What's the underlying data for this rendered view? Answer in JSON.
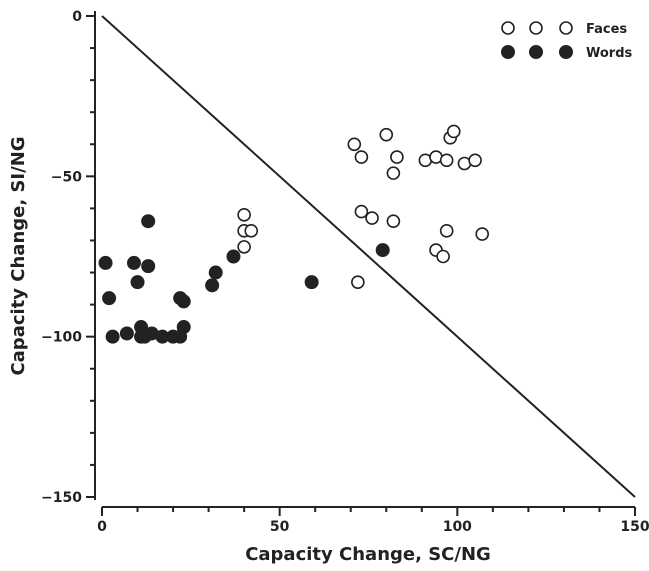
{
  "chart_data": {
    "type": "scatter",
    "xlabel": "Capacity Change, SC/NG",
    "ylabel": "Capacity Change, SI/NG",
    "xlim": [
      0,
      150
    ],
    "ylim": [
      -150,
      0
    ],
    "x_ticks": [
      0,
      50,
      100,
      150
    ],
    "y_ticks": [
      0,
      -50,
      -100,
      -150
    ],
    "minor_tick_step": 10,
    "grid": false,
    "legend_position": "top-right",
    "reference_line": {
      "from": [
        0,
        0
      ],
      "to": [
        150,
        -150
      ]
    },
    "series": [
      {
        "name": "Faces",
        "marker": "open-circle",
        "color": "#222222",
        "points": [
          [
            40,
            -62
          ],
          [
            40,
            -67
          ],
          [
            42,
            -67
          ],
          [
            40,
            -72
          ],
          [
            72,
            -83
          ],
          [
            71,
            -40
          ],
          [
            73,
            -44
          ],
          [
            80,
            -37
          ],
          [
            83,
            -44
          ],
          [
            82,
            -49
          ],
          [
            91,
            -45
          ],
          [
            94,
            -44
          ],
          [
            97,
            -45
          ],
          [
            98,
            -38
          ],
          [
            99,
            -36
          ],
          [
            102,
            -46
          ],
          [
            105,
            -45
          ],
          [
            73,
            -61
          ],
          [
            76,
            -63
          ],
          [
            82,
            -64
          ],
          [
            97,
            -67
          ],
          [
            94,
            -73
          ],
          [
            96,
            -75
          ],
          [
            107,
            -68
          ]
        ]
      },
      {
        "name": "Words",
        "marker": "filled-circle",
        "color": "#222222",
        "points": [
          [
            1,
            -77
          ],
          [
            2,
            -88
          ],
          [
            3,
            -100
          ],
          [
            7,
            -99
          ],
          [
            9,
            -77
          ],
          [
            10,
            -83
          ],
          [
            11,
            -97
          ],
          [
            11,
            -100
          ],
          [
            12,
            -100
          ],
          [
            13,
            -78
          ],
          [
            13,
            -64
          ],
          [
            14,
            -99
          ],
          [
            17,
            -100
          ],
          [
            20,
            -100
          ],
          [
            22,
            -100
          ],
          [
            22,
            -88
          ],
          [
            23,
            -89
          ],
          [
            23,
            -97
          ],
          [
            31,
            -84
          ],
          [
            32,
            -80
          ],
          [
            37,
            -75
          ],
          [
            59,
            -83
          ],
          [
            79,
            -73
          ]
        ]
      }
    ]
  }
}
